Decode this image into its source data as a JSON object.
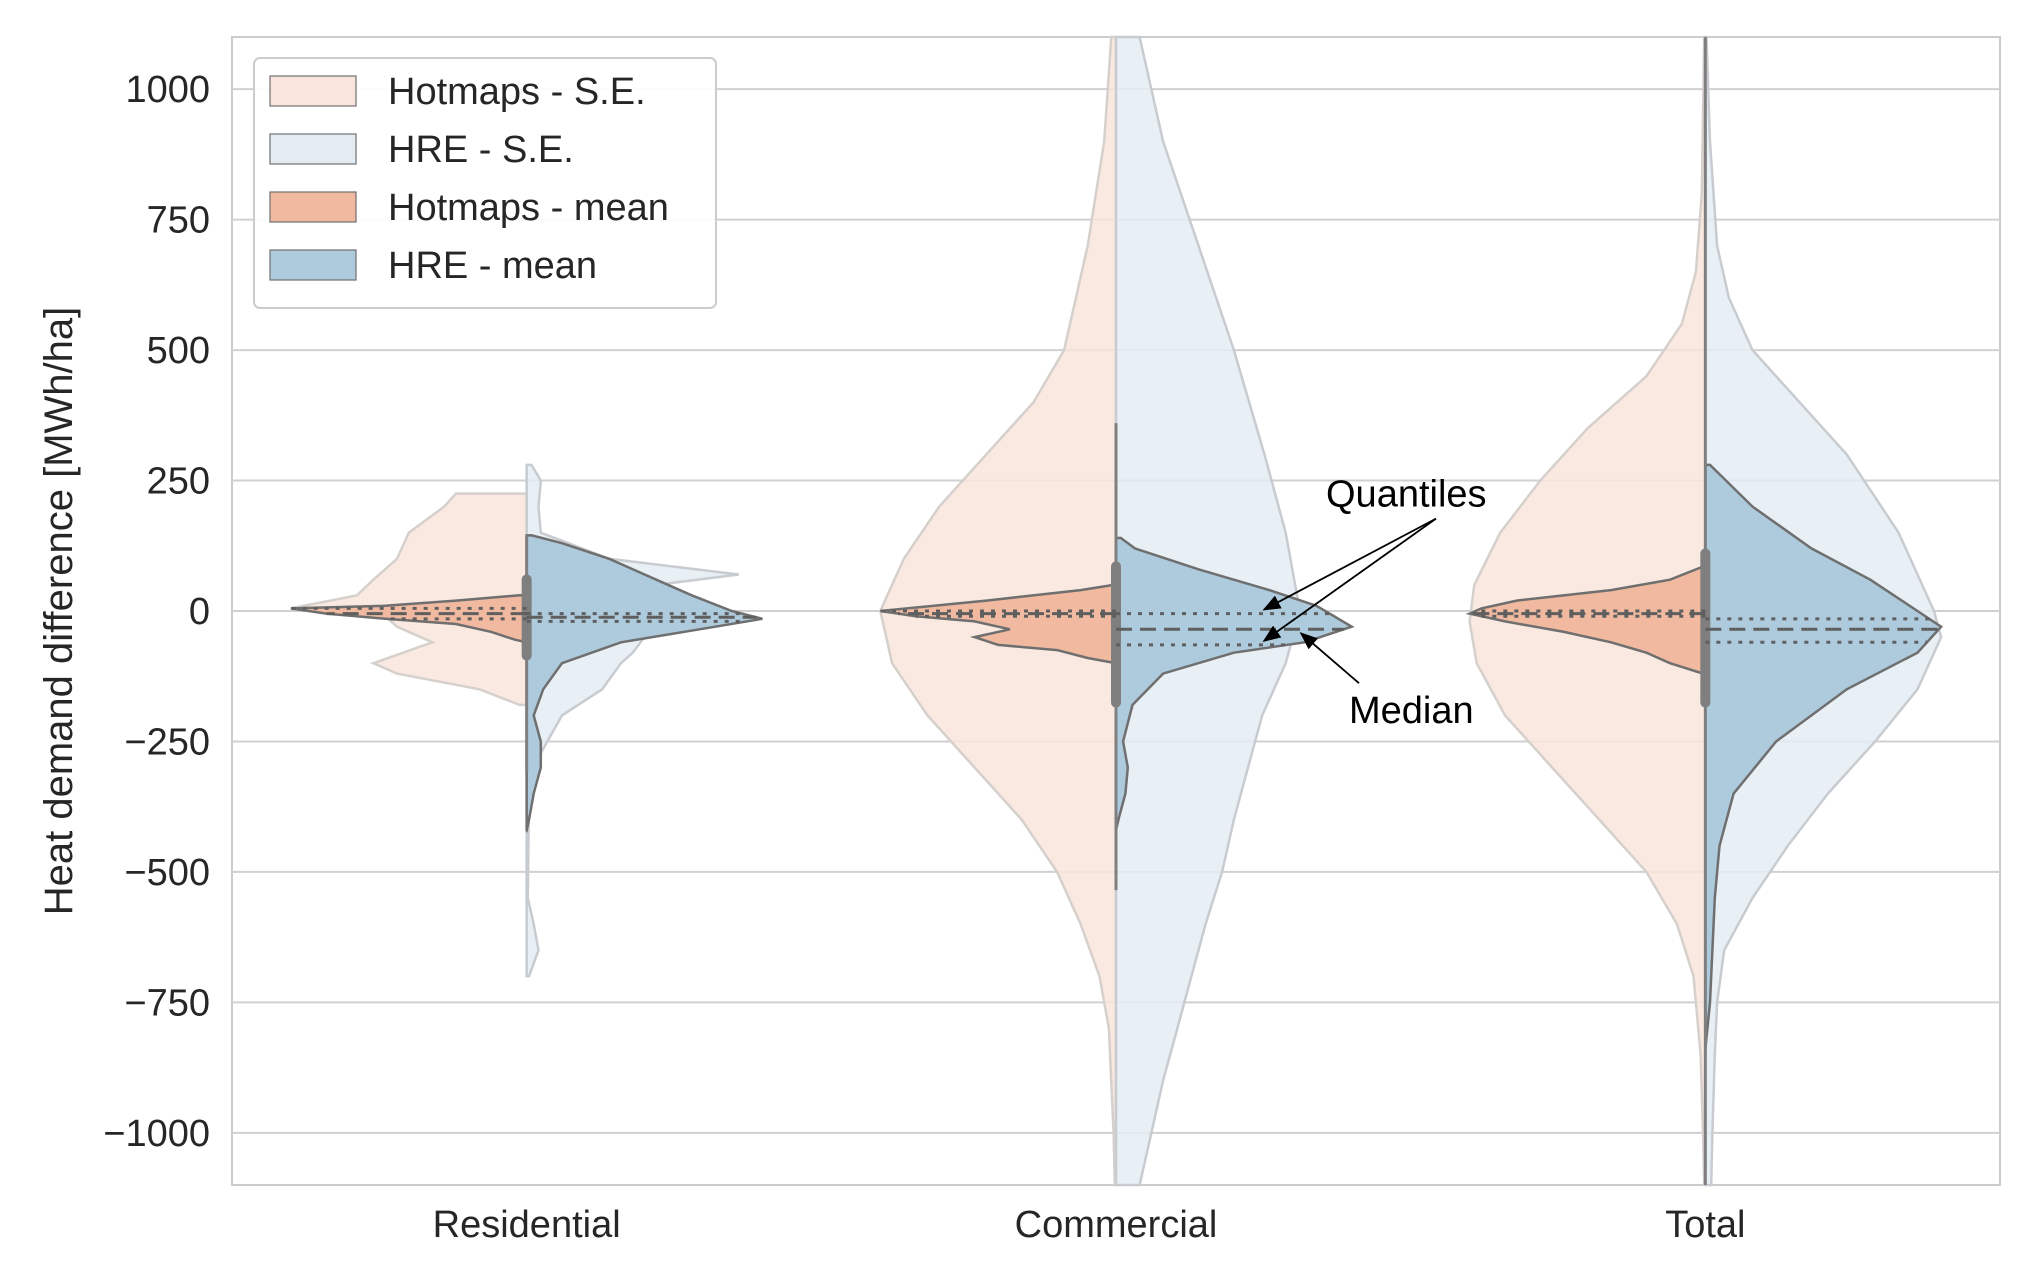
{
  "chart_data": {
    "type": "violin",
    "subtype": "split",
    "title": "",
    "xlabel": "",
    "ylabel": "Heat demand difference [MWh/ha]",
    "ylim": [
      -1100,
      1100
    ],
    "yticks": [
      1000,
      750,
      500,
      250,
      0,
      -250,
      -500,
      -750,
      -1000
    ],
    "ytick_labels": [
      "1000",
      "750",
      "500",
      "250",
      "0",
      "−250",
      "−500",
      "−750",
      "−1000"
    ],
    "categories": [
      "Residential",
      "Commercial",
      "Total"
    ],
    "grid": true,
    "legend_position": "top-left",
    "series": [
      {
        "name": "Hotmaps - S.E.",
        "side": "left",
        "color": "#f9e5dc",
        "outline": "#d6d0cd",
        "profiles": [
          [
            [
              225,
              0.3
            ],
            [
              200,
              0.35
            ],
            [
              150,
              0.5
            ],
            [
              100,
              0.55
            ],
            [
              60,
              0.65
            ],
            [
              30,
              0.72
            ],
            [
              5,
              1.0
            ],
            [
              -10,
              0.6
            ],
            [
              -30,
              0.55
            ],
            [
              -60,
              0.4
            ],
            [
              -100,
              0.65
            ],
            [
              -120,
              0.55
            ],
            [
              -150,
              0.2
            ],
            [
              -180,
              0.03
            ]
          ],
          [
            [
              1100,
              0.02
            ],
            [
              900,
              0.05
            ],
            [
              700,
              0.12
            ],
            [
              500,
              0.22
            ],
            [
              400,
              0.35
            ],
            [
              300,
              0.55
            ],
            [
              200,
              0.75
            ],
            [
              100,
              0.9
            ],
            [
              0,
              1.0
            ],
            [
              -100,
              0.95
            ],
            [
              -200,
              0.8
            ],
            [
              -300,
              0.6
            ],
            [
              -400,
              0.4
            ],
            [
              -500,
              0.25
            ],
            [
              -600,
              0.15
            ],
            [
              -700,
              0.07
            ],
            [
              -800,
              0.03
            ],
            [
              -1000,
              0.01
            ],
            [
              -1100,
              0.005
            ]
          ],
          [
            [
              1100,
              0.005
            ],
            [
              800,
              0.015
            ],
            [
              650,
              0.04
            ],
            [
              550,
              0.1
            ],
            [
              450,
              0.25
            ],
            [
              350,
              0.5
            ],
            [
              250,
              0.7
            ],
            [
              150,
              0.87
            ],
            [
              50,
              0.98
            ],
            [
              -20,
              1.0
            ],
            [
              -100,
              0.97
            ],
            [
              -200,
              0.85
            ],
            [
              -300,
              0.65
            ],
            [
              -400,
              0.45
            ],
            [
              -500,
              0.25
            ],
            [
              -600,
              0.12
            ],
            [
              -700,
              0.05
            ],
            [
              -850,
              0.02
            ],
            [
              -1000,
              0.01
            ],
            [
              -1100,
              0.005
            ]
          ]
        ]
      },
      {
        "name": "HRE - S.E.",
        "side": "right",
        "color": "#e4edf3",
        "outline": "#c8ccd0",
        "profiles": [
          [
            [
              280,
              0.02
            ],
            [
              250,
              0.06
            ],
            [
              200,
              0.05
            ],
            [
              150,
              0.06
            ],
            [
              100,
              0.35
            ],
            [
              70,
              0.9
            ],
            [
              50,
              0.55
            ],
            [
              20,
              0.6
            ],
            [
              -10,
              0.4
            ],
            [
              -50,
              0.5
            ],
            [
              -80,
              0.45
            ],
            [
              -100,
              0.4
            ],
            [
              -150,
              0.32
            ],
            [
              -200,
              0.15
            ],
            [
              -280,
              0.05
            ],
            [
              -350,
              0.01
            ],
            [
              -550,
              0.005
            ],
            [
              -600,
              0.03
            ],
            [
              -650,
              0.05
            ],
            [
              -700,
              0.01
            ]
          ],
          [
            [
              1100,
              0.1
            ],
            [
              900,
              0.2
            ],
            [
              700,
              0.35
            ],
            [
              500,
              0.5
            ],
            [
              300,
              0.63
            ],
            [
              150,
              0.72
            ],
            [
              0,
              0.78
            ],
            [
              -100,
              0.72
            ],
            [
              -200,
              0.62
            ],
            [
              -300,
              0.56
            ],
            [
              -400,
              0.5
            ],
            [
              -500,
              0.45
            ],
            [
              -600,
              0.38
            ],
            [
              -700,
              0.32
            ],
            [
              -800,
              0.26
            ],
            [
              -900,
              0.2
            ],
            [
              -1000,
              0.15
            ],
            [
              -1100,
              0.1
            ]
          ],
          [
            [
              1100,
              0.005
            ],
            [
              900,
              0.02
            ],
            [
              700,
              0.05
            ],
            [
              600,
              0.1
            ],
            [
              500,
              0.2
            ],
            [
              400,
              0.4
            ],
            [
              300,
              0.6
            ],
            [
              150,
              0.82
            ],
            [
              0,
              0.97
            ],
            [
              -50,
              1.0
            ],
            [
              -150,
              0.9
            ],
            [
              -250,
              0.72
            ],
            [
              -350,
              0.52
            ],
            [
              -450,
              0.35
            ],
            [
              -550,
              0.2
            ],
            [
              -650,
              0.08
            ],
            [
              -750,
              0.05
            ],
            [
              -850,
              0.04
            ],
            [
              -1000,
              0.03
            ],
            [
              -1100,
              0.025
            ]
          ]
        ]
      },
      {
        "name": "Hotmaps - mean",
        "side": "left",
        "color": "#f0b9a0",
        "outline": "#6f6f6f",
        "profiles": [
          [
            [
              30,
              0.03
            ],
            [
              20,
              0.3
            ],
            [
              10,
              0.6
            ],
            [
              5,
              1.0
            ],
            [
              -5,
              0.85
            ],
            [
              -15,
              0.6
            ],
            [
              -25,
              0.3
            ],
            [
              -40,
              0.15
            ],
            [
              -55,
              0.05
            ],
            [
              -60,
              0.0
            ]
          ],
          [
            [
              50,
              0.01
            ],
            [
              40,
              0.15
            ],
            [
              20,
              0.55
            ],
            [
              0,
              1.0
            ],
            [
              -10,
              0.85
            ],
            [
              -20,
              0.6
            ],
            [
              -35,
              0.45
            ],
            [
              -50,
              0.6
            ],
            [
              -65,
              0.5
            ],
            [
              -75,
              0.25
            ],
            [
              -90,
              0.12
            ],
            [
              -100,
              0.0
            ]
          ],
          [
            [
              85,
              0.01
            ],
            [
              60,
              0.15
            ],
            [
              40,
              0.4
            ],
            [
              20,
              0.8
            ],
            [
              5,
              0.95
            ],
            [
              -5,
              1.0
            ],
            [
              -20,
              0.85
            ],
            [
              -40,
              0.6
            ],
            [
              -60,
              0.4
            ],
            [
              -80,
              0.25
            ],
            [
              -100,
              0.15
            ],
            [
              -120,
              0.01
            ]
          ]
        ]
      },
      {
        "name": "HRE - mean",
        "side": "right",
        "color": "#aecbdd",
        "outline": "#6f6f6f",
        "profiles": [
          [
            [
              145,
              0.02
            ],
            [
              130,
              0.15
            ],
            [
              100,
              0.35
            ],
            [
              60,
              0.55
            ],
            [
              30,
              0.7
            ],
            [
              0,
              0.87
            ],
            [
              -15,
              1.0
            ],
            [
              -30,
              0.8
            ],
            [
              -60,
              0.4
            ],
            [
              -100,
              0.15
            ],
            [
              -150,
              0.07
            ],
            [
              -200,
              0.03
            ],
            [
              -250,
              0.06
            ],
            [
              -300,
              0.06
            ],
            [
              -350,
              0.03
            ],
            [
              -400,
              0.01
            ],
            [
              -420,
              0.0
            ]
          ],
          [
            [
              140,
              0.02
            ],
            [
              120,
              0.08
            ],
            [
              80,
              0.35
            ],
            [
              40,
              0.65
            ],
            [
              10,
              0.85
            ],
            [
              -30,
              1.0
            ],
            [
              -60,
              0.8
            ],
            [
              -80,
              0.5
            ],
            [
              -120,
              0.2
            ],
            [
              -180,
              0.07
            ],
            [
              -250,
              0.03
            ],
            [
              -300,
              0.05
            ],
            [
              -350,
              0.04
            ],
            [
              -400,
              0.01
            ],
            [
              -420,
              0.0
            ]
          ],
          [
            [
              280,
              0.02
            ],
            [
              200,
              0.2
            ],
            [
              120,
              0.45
            ],
            [
              60,
              0.7
            ],
            [
              0,
              0.9
            ],
            [
              -30,
              1.0
            ],
            [
              -80,
              0.9
            ],
            [
              -150,
              0.6
            ],
            [
              -250,
              0.3
            ],
            [
              -350,
              0.12
            ],
            [
              -450,
              0.06
            ],
            [
              -550,
              0.04
            ],
            [
              -650,
              0.03
            ],
            [
              -750,
              0.02
            ],
            [
              -840,
              0.0
            ]
          ]
        ]
      }
    ],
    "inner_boxes": [
      {
        "category": "Residential",
        "whisker": [
          -310,
          145
        ],
        "box": [
          -95,
          70
        ]
      },
      {
        "category": "Commercial",
        "whisker": [
          -535,
          360
        ],
        "box": [
          -185,
          95
        ]
      },
      {
        "category": "Total",
        "whisker": [
          -1100,
          1100
        ],
        "box": [
          -185,
          120
        ]
      }
    ],
    "quantile_lines": {
      "Hotmaps - mean": {
        "Residential": [
          5,
          -5,
          -15
        ],
        "Commercial": [
          0,
          -5,
          -10
        ],
        "Total": [
          0,
          -5,
          -10
        ]
      },
      "HRE - mean": {
        "Residential": [
          -5,
          -12,
          -20
        ],
        "Commercial": [
          -5,
          -35,
          -65
        ],
        "Total": [
          -15,
          -35,
          -60
        ]
      }
    },
    "annotations": [
      {
        "text": "Quantiles",
        "points_to": [
          {
            "category": "Commercial",
            "value": -5
          },
          {
            "category": "Commercial",
            "value": -65
          }
        ]
      },
      {
        "text": "Median",
        "points_to": [
          {
            "category": "Commercial",
            "value": -35
          }
        ]
      }
    ]
  }
}
